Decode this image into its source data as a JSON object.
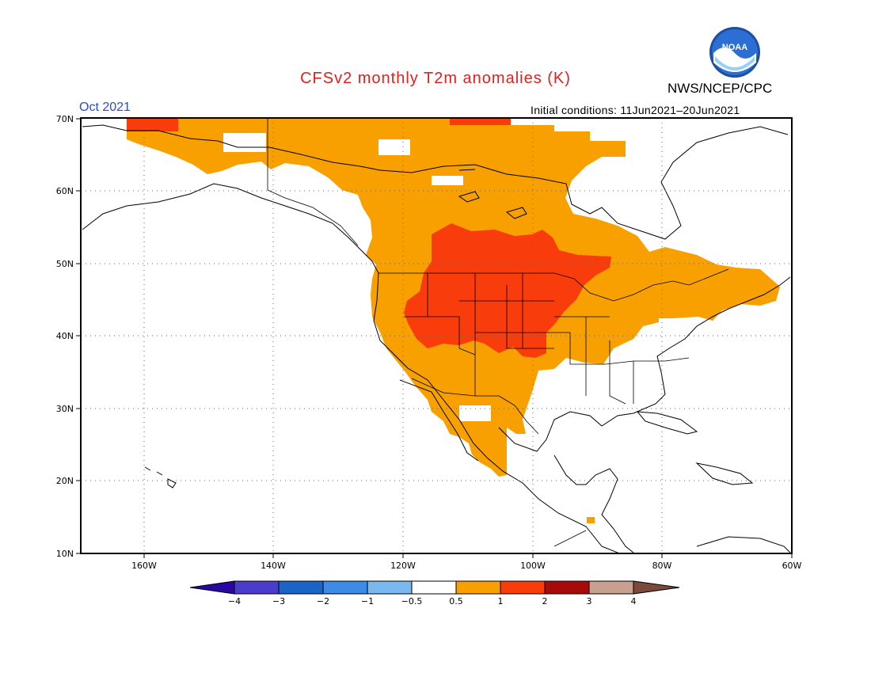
{
  "title": "CFSv2 monthly T2m anomalies (K)",
  "org": "NWS/NCEP/CPC",
  "logo_text": "NOAA",
  "month": "Oct 2021",
  "initial_conditions": "Initial conditions: 11Jun2021–20Jun2021",
  "map": {
    "lon_range": [
      -172,
      -60
    ],
    "lat_range": [
      10,
      70
    ],
    "lat_ticks": [
      "10N",
      "20N",
      "30N",
      "40N",
      "50N",
      "60N",
      "70N"
    ],
    "lon_ticks": [
      "160W",
      "140W",
      "120W",
      "100W",
      "80W",
      "60W"
    ],
    "grid": "dotted",
    "regions": [
      {
        "level": "0.5 to 1",
        "color": "#f8a000"
      },
      {
        "level": "1 to 2",
        "color": "#f83c0c"
      }
    ]
  },
  "colorbar": {
    "labels": [
      "−4",
      "−3",
      "−2",
      "−1",
      "−0.5",
      "0.5",
      "1",
      "2",
      "3",
      "4"
    ],
    "colors": [
      "#2a06a3",
      "#4c3ccc",
      "#1a64c8",
      "#3c8ce6",
      "#7ab8f0",
      "#ffffff",
      "#f8a000",
      "#f83c0c",
      "#a80a0a",
      "#c8a090",
      "#7a4a3a"
    ]
  }
}
